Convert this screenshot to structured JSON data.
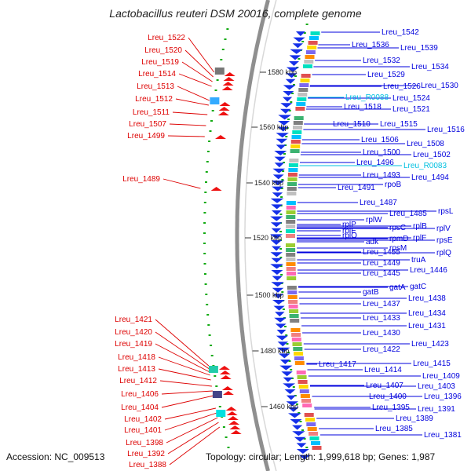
{
  "title": "Lactobacillus reuteri DSM 20016, complete genome",
  "footer": {
    "accession": "Accession: NC_009513",
    "topology": "Topology: circular; Length: 1,999,618 bp; Genes: 1,987"
  },
  "colors": {
    "forward_label": "#0000dd",
    "reverse_label": "#dd0000",
    "rna_label": "#00c0e0",
    "backbone": "#999999",
    "gc_dots": "#11aa11"
  },
  "ticks": [
    "1580 kbp",
    "1560 kbp",
    "1540 kbp",
    "1520 kbp",
    "1500 kbp",
    "1480 kbp",
    "1460 kbp"
  ],
  "forward_labels": [
    "Lreu_1542",
    "Lreu_1536",
    "Lreu_1539",
    "Lreu_1532",
    "Lreu_1534",
    "Lreu_1529",
    "Lreu_1526",
    "Lreu_1530",
    "Lreu_R0088",
    "Lreu_1524",
    "Lreu_1518",
    "Lreu_1521",
    "Lreu_1510",
    "Lreu_1515",
    "Lreu_1516",
    "Lreu_1506",
    "Lreu_1508",
    "Lreu_1500",
    "Lreu_1502",
    "Lreu_1496",
    "Lreu_R0083",
    "Lreu_1493",
    "Lreu_1494",
    "Lreu_1491",
    "rpoB",
    "Lreu_1487",
    "rpsL",
    "Lreu_1485",
    "rplW",
    "rplP",
    "rpsC",
    "rplB",
    "rplV",
    "rplE",
    "rpmD",
    "rplF",
    "rplO",
    "rpsE",
    "adk",
    "rpsM",
    "rplQ",
    "Lreu_1455",
    "truA",
    "Lreu_1449",
    "Lreu_1446",
    "Lreu_1445",
    "gatA",
    "gatC",
    "gatB",
    "Lreu_1438",
    "Lreu_1437",
    "Lreu_1434",
    "Lreu_1433",
    "Lreu_1431",
    "Lreu_1430",
    "Lreu_1423",
    "Lreu_1422",
    "Lreu_1417",
    "Lreu_1415",
    "Lreu_1414",
    "Lreu_1409",
    "Lreu_1407",
    "Lreu_1403",
    "Lreu_1400",
    "Lreu_1396",
    "Lreu_1395",
    "Lreu_1391",
    "Lreu_1389",
    "Lreu_1385",
    "Lreu_1381"
  ],
  "reverse_labels": [
    "Lreu_1522",
    "Lreu_1520",
    "Lreu_1519",
    "Lreu_1514",
    "Lreu_1513",
    "Lreu_1512",
    "Lreu_1511",
    "Lreu_1507",
    "Lreu_1499",
    "Lreu_1489",
    "Lreu_1421",
    "Lreu_1420",
    "Lreu_1419",
    "Lreu_1418",
    "Lreu_1413",
    "Lreu_1412",
    "Lreu_1406",
    "Lreu_1404",
    "Lreu_1402",
    "Lreu_1401",
    "Lreu_1398",
    "Lreu_1392",
    "Lreu_1388"
  ]
}
